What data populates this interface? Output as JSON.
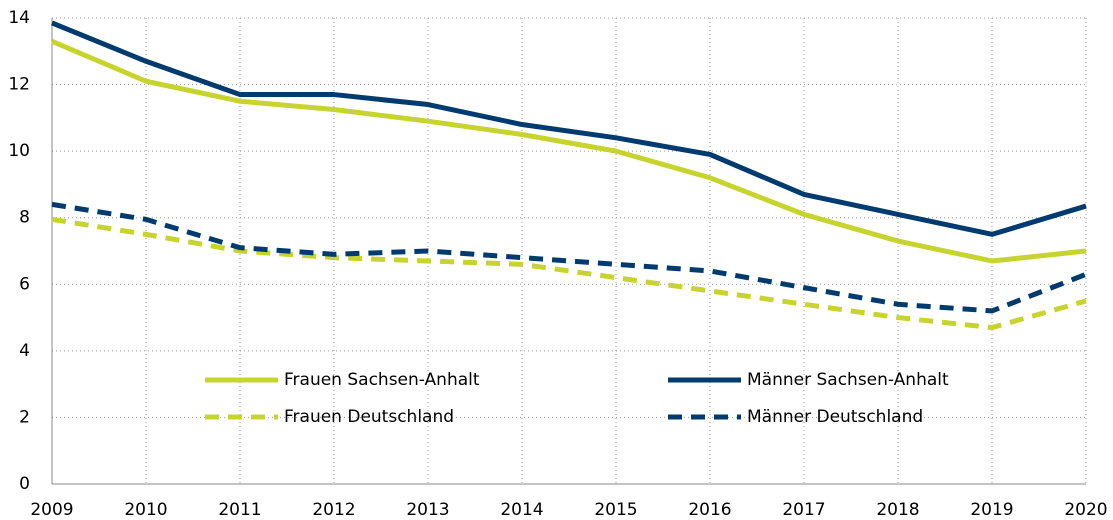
{
  "chart_data": {
    "type": "line",
    "categories": [
      "2009",
      "2010",
      "2011",
      "2012",
      "2013",
      "2014",
      "2015",
      "2016",
      "2017",
      "2018",
      "2019",
      "2020"
    ],
    "series": [
      {
        "name": "Frauen Sachsen-Anhalt",
        "color": "#c8d42e",
        "dashed": false,
        "values": [
          13.3,
          12.1,
          11.5,
          11.25,
          10.9,
          10.5,
          10.0,
          9.2,
          8.1,
          7.3,
          6.7,
          7.0
        ]
      },
      {
        "name": "Männer Sachsen-Anhalt",
        "color": "#003b6f",
        "dashed": false,
        "values": [
          13.85,
          12.7,
          11.7,
          11.7,
          11.4,
          10.8,
          10.4,
          9.9,
          8.7,
          8.1,
          7.5,
          8.35
        ]
      },
      {
        "name": "Frauen Deutschland",
        "color": "#c8d42e",
        "dashed": true,
        "values": [
          7.95,
          7.5,
          7.0,
          6.8,
          6.7,
          6.6,
          6.2,
          5.8,
          5.4,
          5.0,
          4.7,
          5.5
        ]
      },
      {
        "name": "Männer Deutschland",
        "color": "#003b6f",
        "dashed": true,
        "values": [
          8.4,
          7.95,
          7.1,
          6.9,
          7.0,
          6.8,
          6.6,
          6.4,
          5.9,
          5.4,
          5.2,
          6.3
        ]
      }
    ],
    "ylim": [
      0,
      14
    ],
    "yticks": [
      0,
      2,
      4,
      6,
      8,
      10,
      12,
      14
    ],
    "grid": true
  }
}
